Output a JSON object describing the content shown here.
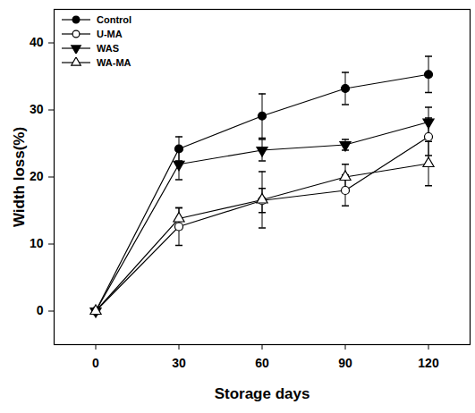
{
  "chart_data": {
    "type": "line",
    "x_label": "Storage days",
    "y_label": "Width loss(%)",
    "x": [
      0,
      30,
      60,
      90,
      120
    ],
    "xlim": [
      -15,
      135
    ],
    "xticks": [
      0,
      30,
      60,
      90,
      120
    ],
    "ylim": [
      -5,
      45
    ],
    "yticks": [
      0,
      10,
      20,
      30,
      40
    ],
    "legend": "upper left",
    "series": [
      {
        "name": "Control",
        "color": "#000000",
        "marker": "circle",
        "values": [
          0,
          24.2,
          29.1,
          33.2,
          35.3
        ],
        "errors": [
          0,
          1.8,
          3.3,
          2.4,
          2.7
        ]
      },
      {
        "name": "U-MA",
        "color": "#000000",
        "marker": "circle-open",
        "values": [
          0,
          12.6,
          16.5,
          18.0,
          26.0
        ],
        "errors": [
          0,
          2.8,
          1.8,
          2.3,
          2.8
        ]
      },
      {
        "name": "WAS",
        "color": "#000000",
        "marker": "triangle-down",
        "values": [
          0,
          21.9,
          24.0,
          24.8,
          28.2
        ],
        "errors": [
          0,
          2.3,
          1.6,
          0.8,
          2.2
        ]
      },
      {
        "name": "WA-MA",
        "color": "#000000",
        "marker": "triangle-open",
        "values": [
          0,
          13.8,
          16.6,
          20.0,
          22.0
        ],
        "errors": [
          0,
          1.6,
          4.2,
          1.9,
          3.3
        ]
      }
    ]
  }
}
